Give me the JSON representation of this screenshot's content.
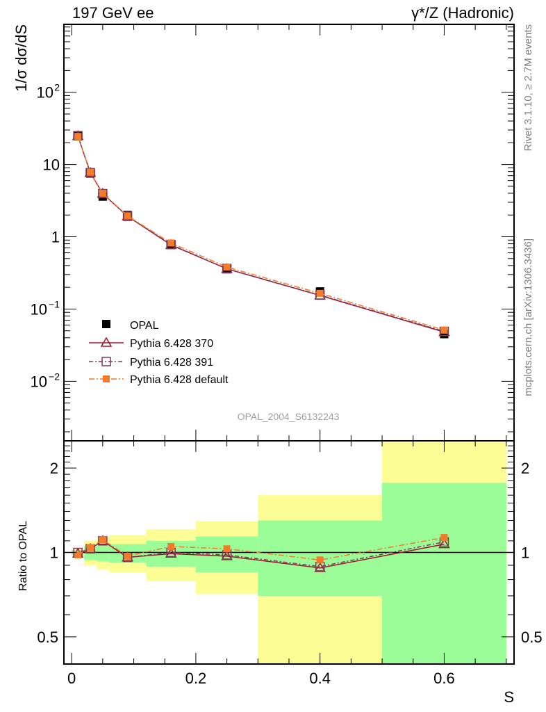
{
  "chart_data": [
    {
      "type": "line",
      "title_left": "197 GeV ee",
      "title_right": "γ*/Z (Hadronic)",
      "ylabel": "1/σ dσ/dS",
      "yscale": "log",
      "ylim": [
        0.0015,
        870
      ],
      "xlim": [
        -0.0125,
        0.7125
      ],
      "ytick_labels": [
        {
          "v": 100,
          "base": "10",
          "exp": "2"
        },
        {
          "v": 10,
          "base": "10",
          "exp": ""
        },
        {
          "v": 1,
          "base": "1",
          "exp": ""
        },
        {
          "v": 0.1,
          "base": "10",
          "exp": "−1"
        },
        {
          "v": 0.01,
          "base": "10",
          "exp": "−2"
        }
      ],
      "x": [
        0.01,
        0.03,
        0.05,
        0.09,
        0.16,
        0.25,
        0.4,
        0.6
      ],
      "bin_edges": [
        0,
        0.02,
        0.04,
        0.06,
        0.12,
        0.2,
        0.3,
        0.5,
        0.7
      ],
      "data": {
        "name": "OPAL",
        "values": [
          25,
          7.5,
          3.6,
          2.0,
          0.78,
          0.37,
          0.175,
          0.045
        ],
        "color": "#000000"
      },
      "series": [
        {
          "name": "Pythia 6.428 370",
          "values": [
            24.8,
            7.7,
            3.95,
            1.92,
            0.77,
            0.36,
            0.154,
            0.048
          ],
          "color": "#a0142d",
          "marker": "triangle",
          "dash": ""
        },
        {
          "name": "Pythia 6.428 391",
          "values": [
            25,
            7.7,
            3.95,
            1.92,
            0.78,
            0.36,
            0.156,
            0.049
          ],
          "color": "#7a3a5a",
          "marker": "square-open",
          "dash": "6,3,2,3"
        },
        {
          "name": "Pythia 6.428 default",
          "values": [
            24.5,
            7.8,
            4.0,
            1.94,
            0.82,
            0.38,
            0.165,
            0.051
          ],
          "color": "#f47a2c",
          "marker": "square",
          "dash": "8,3,2,3"
        }
      ],
      "legend_position": "bottom-left",
      "watermark": "OPAL_2004_S6132243"
    },
    {
      "type": "line",
      "ylabel": "Ratio to OPAL",
      "xlabel": "S",
      "yscale": "log",
      "ylim": [
        0.4,
        2.5
      ],
      "ytick_labels": [
        {
          "v": 2,
          "t": "2"
        },
        {
          "v": 1,
          "t": "1"
        },
        {
          "v": 0.5,
          "t": "0.5"
        }
      ],
      "xtick_labels": [
        {
          "v": 0,
          "t": "0"
        },
        {
          "v": 0.2,
          "t": "0.2"
        },
        {
          "v": 0.4,
          "t": "0.4"
        },
        {
          "v": 0.6,
          "t": "0.6"
        }
      ],
      "band_stat": [
        [
          0.98,
          1.02
        ],
        [
          0.94,
          1.05
        ],
        [
          0.93,
          1.07
        ],
        [
          0.92,
          1.07
        ],
        [
          0.89,
          1.1
        ],
        [
          0.85,
          1.14
        ],
        [
          0.7,
          1.3
        ],
        [
          0.3,
          1.77
        ]
      ],
      "band_total": [
        [
          0.97,
          1.03
        ],
        [
          0.9,
          1.1
        ],
        [
          0.87,
          1.13
        ],
        [
          0.85,
          1.15
        ],
        [
          0.79,
          1.21
        ],
        [
          0.71,
          1.29
        ],
        [
          0.3,
          1.6
        ],
        [
          0.3,
          3.0
        ]
      ],
      "series": [
        {
          "name": "Pythia 6.428 370",
          "values": [
            0.99,
            1.03,
            1.1,
            0.96,
            0.99,
            0.97,
            0.88,
            1.07
          ]
        },
        {
          "name": "Pythia 6.428 391",
          "values": [
            1.0,
            1.03,
            1.1,
            0.96,
            1.0,
            0.98,
            0.89,
            1.09
          ]
        },
        {
          "name": "Pythia 6.428 default",
          "values": [
            0.98,
            1.04,
            1.11,
            0.97,
            1.05,
            1.03,
            0.94,
            1.13
          ]
        }
      ]
    }
  ],
  "side": {
    "rivet": "Rivet 3.1.10, ≥ 2.7M events",
    "mcplots": "mcplots.cern.ch [arXiv:1306.3436]"
  },
  "colors": {
    "band_stat": "#9bfd97",
    "band_total": "#fdfd96"
  }
}
